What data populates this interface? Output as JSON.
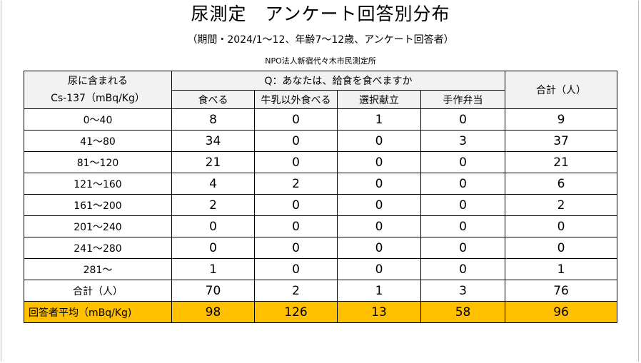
{
  "title": "尿測定　アンケート回答別分布",
  "subtitle": "（期間・2024/1～12、年齢7～12歳、アンケート回答者）",
  "organization": "NPO法人新宿代々木市民測定所",
  "header": {
    "row_label_line1": "尿に含まれる",
    "row_label_line2": "Cs-137（mBq/Kg）",
    "question": "Q：あなたは、給食を食べますか",
    "total_label": "合計（人）",
    "columns": [
      "食べる",
      "牛乳以外食べる",
      "選択献立",
      "手作弁当"
    ]
  },
  "rows": [
    {
      "range": "0～40",
      "values": [
        "8",
        "0",
        "1",
        "0"
      ],
      "total": "9"
    },
    {
      "range": "41～80",
      "values": [
        "34",
        "0",
        "0",
        "3"
      ],
      "total": "37"
    },
    {
      "range": "81～120",
      "values": [
        "21",
        "0",
        "0",
        "0"
      ],
      "total": "21"
    },
    {
      "range": "121～160",
      "values": [
        "4",
        "2",
        "0",
        "0"
      ],
      "total": "6"
    },
    {
      "range": "161～200",
      "values": [
        "2",
        "0",
        "0",
        "0"
      ],
      "total": "2"
    },
    {
      "range": "201～240",
      "values": [
        "0",
        "0",
        "0",
        "0"
      ],
      "total": "0"
    },
    {
      "range": "241～280",
      "values": [
        "0",
        "0",
        "0",
        "0"
      ],
      "total": "0"
    },
    {
      "range": "281～",
      "values": [
        "1",
        "0",
        "0",
        "0"
      ],
      "total": "1"
    }
  ],
  "totals_row": {
    "label": "合計（人）",
    "values": [
      "70",
      "2",
      "1",
      "3"
    ],
    "total": "76"
  },
  "average_row": {
    "label": "回答者平均（mBq/Kg)",
    "values": [
      "98",
      "126",
      "13",
      "58"
    ],
    "total": "96"
  },
  "colors": {
    "average_highlight": "#ffc000",
    "header_background": "#f2f2f2"
  }
}
